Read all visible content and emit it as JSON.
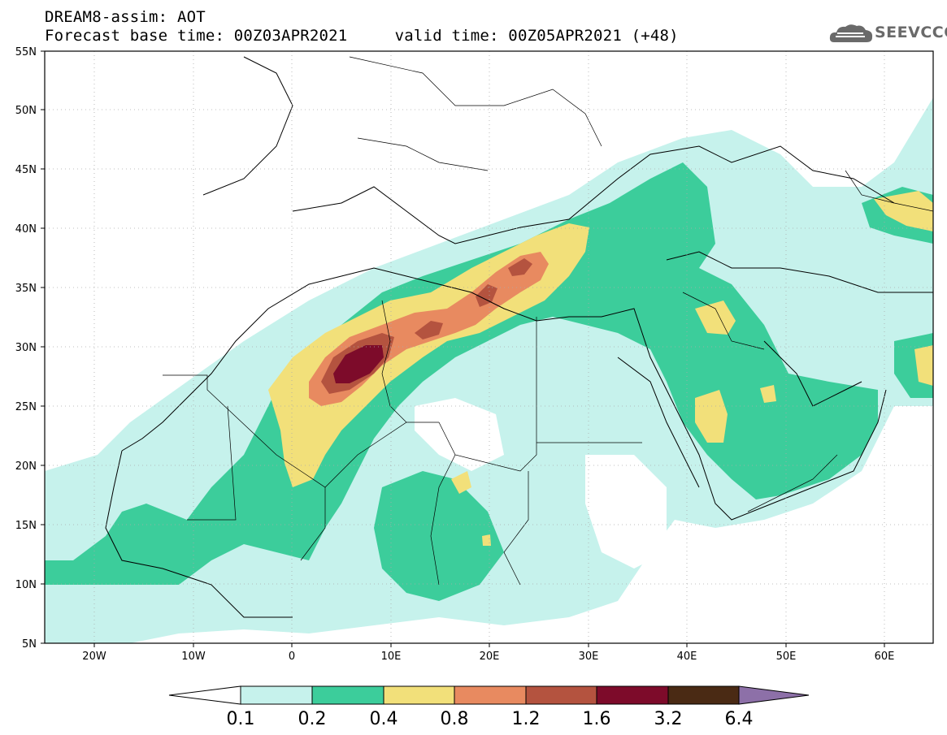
{
  "header": {
    "title_line1": "DREAM8-assim: AOT",
    "title_line2": "Forecast base time: 00Z03APR2021     valid time: 00Z05APR2021 (+48)"
  },
  "logo": {
    "text": "SEEVCCC",
    "icon": "cloud-logo-icon"
  },
  "map": {
    "lat_labels": [
      "55N",
      "50N",
      "45N",
      "40N",
      "35N",
      "30N",
      "25N",
      "20N",
      "15N",
      "10N",
      "5N"
    ],
    "lon_labels": [
      "20W",
      "10W",
      "0",
      "10E",
      "20E",
      "30E",
      "40E",
      "50E",
      "60E"
    ],
    "lat_range": [
      5,
      55
    ],
    "lon_range": [
      -25,
      65
    ],
    "colors": {
      "c01": "#c6f2ec",
      "c02": "#3ccd9b",
      "c04": "#f2e07a",
      "c08": "#e88a60",
      "c12": "#b4533f",
      "c16": "#7d0b2a",
      "c32": "#4a2a14",
      "c64": "#8d70a8"
    }
  },
  "colorbar": {
    "labels": [
      "0.1",
      "0.2",
      "0.4",
      "0.8",
      "1.2",
      "1.6",
      "3.2",
      "6.4"
    ],
    "colors": [
      "#c6f2ec",
      "#3ccd9b",
      "#f2e07a",
      "#e88a60",
      "#b4533f",
      "#7d0b2a",
      "#4a2a14",
      "#8d70a8"
    ]
  }
}
